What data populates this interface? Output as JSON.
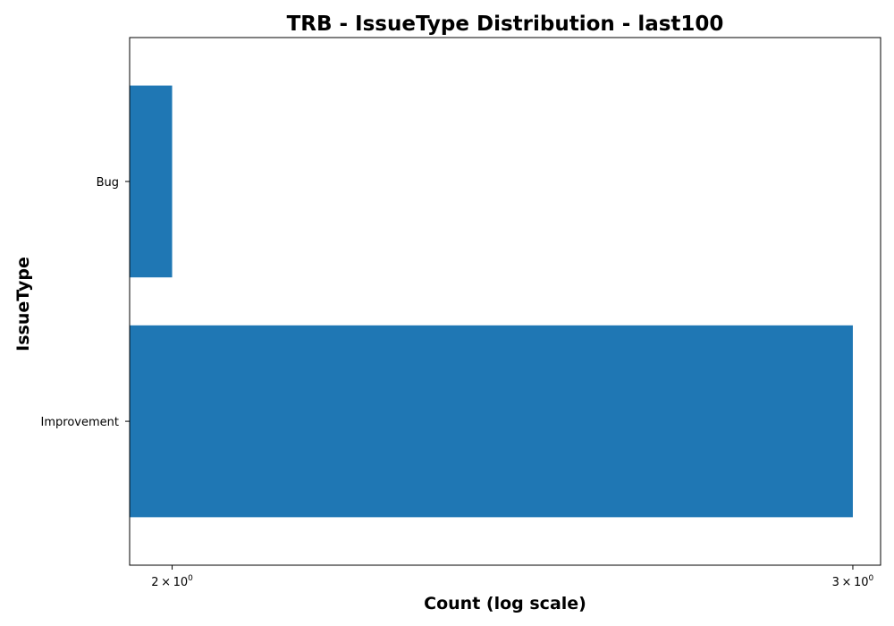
{
  "chart_data": {
    "type": "bar",
    "orientation": "horizontal",
    "title": "TRB - IssueType Distribution - last100",
    "xlabel": "Count (log scale)",
    "ylabel": "IssueType",
    "x_scale": "log",
    "xlim": [
      1.95,
      3.05
    ],
    "categories": [
      "Bug",
      "Improvement"
    ],
    "values": [
      2,
      3
    ],
    "x_ticks": [
      {
        "value": 2,
        "base": "2",
        "mult": "×",
        "power": "10",
        "exp": "0"
      },
      {
        "value": 3,
        "base": "3",
        "mult": "×",
        "power": "10",
        "exp": "0"
      }
    ],
    "bar_color": "#1f77b4",
    "grid": false,
    "legend": "none"
  }
}
